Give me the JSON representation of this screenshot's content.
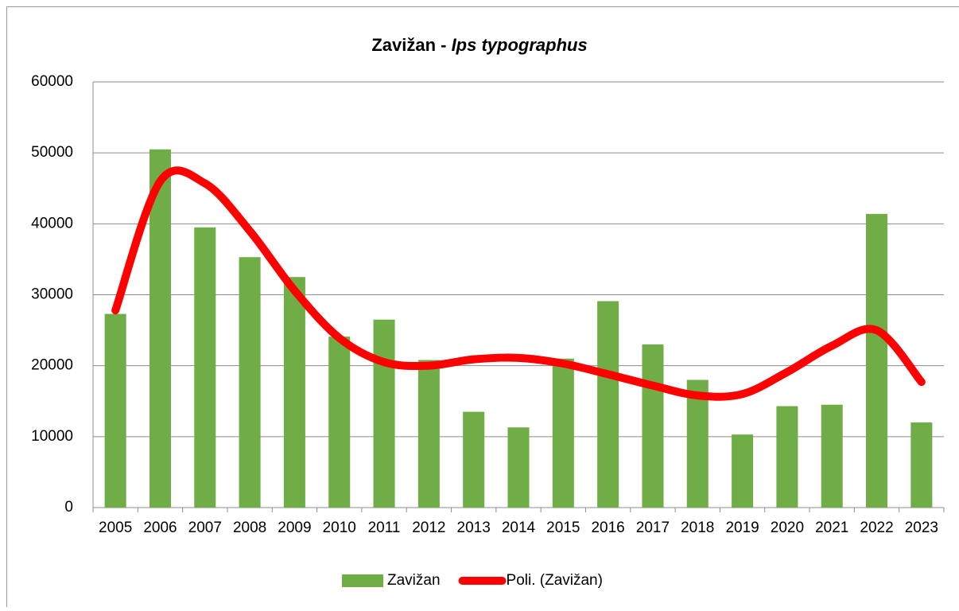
{
  "chart_data": {
    "type": "bar",
    "title_parts": [
      "Zavižan - ",
      "Ips typographus"
    ],
    "categories": [
      "2005",
      "2006",
      "2007",
      "2008",
      "2009",
      "2010",
      "2011",
      "2012",
      "2013",
      "2014",
      "2015",
      "2016",
      "2017",
      "2018",
      "2019",
      "2020",
      "2021",
      "2022",
      "2023"
    ],
    "series": [
      {
        "name": "Zavižan",
        "type": "bar",
        "color": "#70ad47",
        "values": [
          27300,
          50500,
          39500,
          35300,
          32500,
          24100,
          26500,
          20800,
          13500,
          11300,
          21000,
          29100,
          23000,
          18000,
          10300,
          14300,
          14500,
          41400,
          12000
        ]
      },
      {
        "name": "Poli. (Zavižan)",
        "type": "line",
        "color": "#ff0000",
        "values": [
          27800,
          46000,
          45700,
          39000,
          30600,
          23900,
          20500,
          20000,
          20900,
          21100,
          20300,
          18800,
          17200,
          15800,
          16000,
          19100,
          22800,
          25000,
          17700
        ]
      }
    ],
    "ylim": [
      0,
      60000
    ],
    "yticks": [
      0,
      10000,
      20000,
      30000,
      40000,
      50000,
      60000
    ],
    "grid": true,
    "legend": "bottom"
  }
}
